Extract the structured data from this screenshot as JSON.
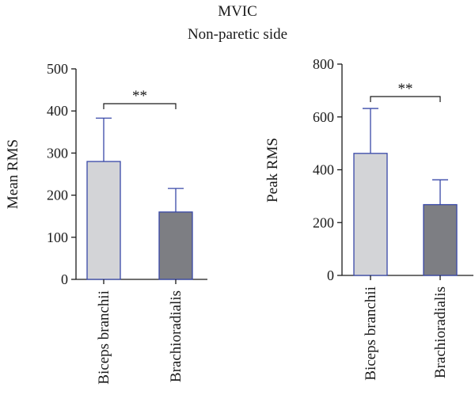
{
  "figure": {
    "title": "MVIC",
    "subtitle": "Non-paretic side"
  },
  "colors": {
    "bar_light": "#d3d4d7",
    "bar_dark": "#7d7e83",
    "bar_edge": "#3848a8",
    "text": "#1a1a1a"
  },
  "chart_data": [
    {
      "type": "bar",
      "categories": [
        "Biceps branchii",
        "Brachioradialis"
      ],
      "values": [
        280,
        160
      ],
      "errors": [
        103,
        56
      ],
      "bar_colors": [
        "#d3d4d7",
        "#7d7e83"
      ],
      "xlabel": "",
      "ylabel": "Mean RMS",
      "ylim": [
        0,
        500
      ],
      "yticks": [
        0,
        100,
        200,
        300,
        400,
        500
      ],
      "significance": "**",
      "grid": false
    },
    {
      "type": "bar",
      "categories": [
        "Biceps branchii",
        "Brachioradialis"
      ],
      "values": [
        462,
        268
      ],
      "errors": [
        170,
        94
      ],
      "bar_colors": [
        "#d3d4d7",
        "#7d7e83"
      ],
      "xlabel": "",
      "ylabel": "Peak RMS",
      "ylim": [
        0,
        800
      ],
      "yticks": [
        0,
        200,
        400,
        600,
        800
      ],
      "significance": "**",
      "grid": false
    }
  ]
}
